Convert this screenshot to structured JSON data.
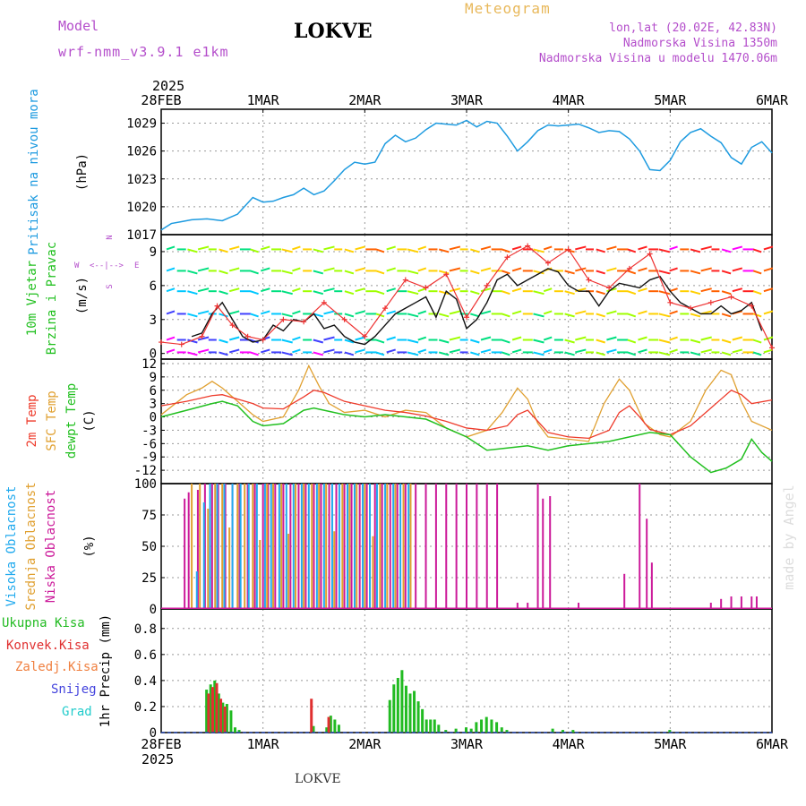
{
  "header": {
    "model_label": "Model",
    "model_name": "wrf-nmm_v3.9.1 e1km",
    "station": "LOKVE",
    "title": "Meteogram",
    "lonlat": "lon,lat (20.02E, 42.83N)",
    "altitude": "Nadmorska Visina 1350m",
    "model_altitude": "Nadmorska Visina u modelu 1470.06m",
    "footer_station": "LOKVE",
    "watermark": "made by Angel"
  },
  "time_axis": {
    "year": "2025",
    "ticks": [
      "28FEB",
      "1MAR",
      "2MAR",
      "3MAR",
      "4MAR",
      "5MAR",
      "6MAR"
    ]
  },
  "colors": {
    "pressure": "#1e9be0",
    "temp2m": "#ee3a2a",
    "sfc": "#e0a030",
    "dew": "#22c020",
    "wind_speed": "#111111",
    "gust": "#ee3333",
    "high_cloud": "#22aaee",
    "mid_cloud": "#e0a030",
    "low_cloud": "#cc1a9a",
    "total_precip": "#22bb22",
    "conv_precip": "#e03030",
    "snow": "#4444dd",
    "grad": "#22cccc",
    "purple_text": "#b44ecb",
    "orange_text": "#e8b85a"
  },
  "chart_data": [
    {
      "type": "line",
      "panel": "pressure",
      "ylabel": "Pritisak na nivou mora",
      "unit": "(hPa)",
      "ylim": [
        1017,
        1030.5
      ],
      "yticks": [
        1017,
        1020,
        1023,
        1026,
        1029
      ],
      "grid": true,
      "series": [
        {
          "x": [
            0,
            0.1,
            0.2,
            0.3,
            0.45,
            0.6,
            0.75,
            0.9,
            1.0,
            1.1,
            1.2,
            1.3,
            1.4,
            1.5,
            1.6,
            1.7,
            1.8,
            1.9,
            2.0,
            2.1,
            2.2,
            2.3,
            2.4,
            2.5,
            2.6,
            2.7,
            2.8,
            2.9,
            3.0,
            3.1,
            3.2,
            3.3,
            3.4,
            3.5,
            3.6,
            3.7,
            3.8,
            3.9,
            4.0,
            4.1,
            4.2,
            4.3,
            4.4,
            4.5,
            4.6,
            4.7,
            4.8,
            4.9,
            5.0,
            5.1,
            5.2,
            5.3,
            5.4,
            5.5,
            5.6,
            5.7,
            5.8,
            5.9,
            6.0
          ],
          "values": [
            1017.5,
            1018.2,
            1018.4,
            1018.6,
            1018.7,
            1018.5,
            1019.2,
            1021.0,
            1020.5,
            1020.6,
            1021.0,
            1021.3,
            1022.0,
            1021.3,
            1021.7,
            1022.8,
            1024.0,
            1024.8,
            1024.6,
            1024.8,
            1026.8,
            1027.7,
            1027.0,
            1027.4,
            1028.3,
            1029.0,
            1028.9,
            1028.8,
            1029.3,
            1028.6,
            1029.2,
            1029.0,
            1027.6,
            1026.0,
            1027.0,
            1028.2,
            1028.8,
            1028.7,
            1028.8,
            1028.9,
            1028.5,
            1028.0,
            1028.2,
            1028.1,
            1027.3,
            1026.0,
            1024.0,
            1023.9,
            1025.0,
            1027.0,
            1028.0,
            1028.4,
            1027.6,
            1026.9,
            1025.3,
            1024.6,
            1026.4,
            1027.0,
            1025.8
          ]
        }
      ]
    },
    {
      "type": "line",
      "panel": "wind",
      "ylabel": "10m Vjetar Brzina i Pravac",
      "unit": "(m/s)",
      "direction_legend": [
        "W",
        "<--|-->",
        "E",
        "N",
        "S"
      ],
      "ylim": [
        -0.5,
        10.5
      ],
      "yticks": [
        0,
        3,
        6,
        9
      ],
      "grid": true,
      "series": [
        {
          "name": "speed",
          "x": [
            0.3,
            0.4,
            0.5,
            0.6,
            0.7,
            0.8,
            0.9,
            1.0,
            1.1,
            1.2,
            1.3,
            1.4,
            1.5,
            1.6,
            1.7,
            1.8,
            1.9,
            2.0,
            2.1,
            2.2,
            2.3,
            2.4,
            2.5,
            2.6,
            2.7,
            2.8,
            2.9,
            3.0,
            3.1,
            3.2,
            3.3,
            3.4,
            3.5,
            3.6,
            3.7,
            3.8,
            3.9,
            4.0,
            4.1,
            4.2,
            4.3,
            4.4,
            4.5,
            4.6,
            4.7,
            4.8,
            4.9,
            5.0,
            5.1,
            5.2,
            5.3,
            5.4,
            5.5,
            5.6,
            5.7,
            5.8,
            5.9
          ],
          "values": [
            1.5,
            1.8,
            3.5,
            4.5,
            3.0,
            1.5,
            1.0,
            1.2,
            2.5,
            2.0,
            3.0,
            2.8,
            3.5,
            2.2,
            2.5,
            1.5,
            1.0,
            0.8,
            1.5,
            2.5,
            3.5,
            4.0,
            4.5,
            5.0,
            3.2,
            5.5,
            4.8,
            2.2,
            3.0,
            4.5,
            6.5,
            7.0,
            6.0,
            6.5,
            7.0,
            7.5,
            7.2,
            6.0,
            5.5,
            5.5,
            4.2,
            5.5,
            6.2,
            6.0,
            5.8,
            6.5,
            6.8,
            5.5,
            4.5,
            4.0,
            3.5,
            3.5,
            4.2,
            3.5,
            3.8,
            4.5,
            2.0
          ]
        },
        {
          "name": "gust",
          "x": [
            0.0,
            0.2,
            0.4,
            0.55,
            0.7,
            0.85,
            1.0,
            1.2,
            1.4,
            1.6,
            1.8,
            2.0,
            2.2,
            2.4,
            2.6,
            2.8,
            3.0,
            3.2,
            3.4,
            3.6,
            3.8,
            4.0,
            4.2,
            4.4,
            4.6,
            4.8,
            5.0,
            5.2,
            5.4,
            5.6,
            5.8,
            6.0
          ],
          "values": [
            1.0,
            0.8,
            1.5,
            4.2,
            2.5,
            1.5,
            1.2,
            3.0,
            2.8,
            4.5,
            3.0,
            1.5,
            4.0,
            6.5,
            5.8,
            7.0,
            3.2,
            6.0,
            8.5,
            9.5,
            8.0,
            9.2,
            6.5,
            5.8,
            7.5,
            8.8,
            4.5,
            4.0,
            4.5,
            5.0,
            4.2,
            0.5
          ]
        }
      ]
    },
    {
      "type": "line",
      "panel": "temperature",
      "ylabel": "2m Temp / SFC Temp / dewpt Temp",
      "legend": [
        "2m Temp",
        "SFC Temp",
        "dewpt Temp"
      ],
      "unit": "(C)",
      "ylim": [
        -15,
        13
      ],
      "yticks": [
        -12,
        -9,
        -6,
        -3,
        0,
        3,
        6,
        9,
        12
      ],
      "grid": true,
      "series": [
        {
          "name": "2m Temp",
          "x": [
            0,
            0.25,
            0.5,
            0.6,
            0.75,
            0.9,
            1.0,
            1.2,
            1.4,
            1.5,
            1.6,
            1.8,
            2.0,
            2.2,
            2.4,
            2.6,
            2.8,
            3.0,
            3.2,
            3.4,
            3.5,
            3.6,
            3.7,
            3.8,
            3.9,
            4.0,
            4.2,
            4.4,
            4.5,
            4.6,
            4.7,
            4.8,
            5.0,
            5.2,
            5.4,
            5.5,
            5.6,
            5.7,
            5.8,
            6.0
          ],
          "values": [
            2.5,
            3.5,
            4.8,
            5.0,
            4.0,
            3.0,
            2.0,
            1.8,
            4.5,
            6.0,
            5.5,
            3.5,
            2.5,
            1.5,
            1.0,
            0.2,
            -1.0,
            -2.5,
            -3.0,
            -2.0,
            0.5,
            1.5,
            -1.0,
            -3.5,
            -4.0,
            -4.5,
            -4.8,
            -3.0,
            1.0,
            2.5,
            0.0,
            -2.8,
            -4.0,
            -2.0,
            2.0,
            4.0,
            6.0,
            5.0,
            3.0,
            3.8
          ]
        },
        {
          "name": "SFC Temp",
          "x": [
            0,
            0.25,
            0.4,
            0.5,
            0.6,
            0.75,
            0.9,
            1.0,
            1.2,
            1.35,
            1.45,
            1.55,
            1.65,
            1.8,
            2.0,
            2.2,
            2.4,
            2.6,
            2.8,
            3.0,
            3.2,
            3.35,
            3.5,
            3.6,
            3.7,
            3.8,
            4.0,
            4.2,
            4.35,
            4.5,
            4.6,
            4.75,
            4.9,
            5.0,
            5.2,
            5.35,
            5.5,
            5.6,
            5.7,
            5.8,
            6.0
          ],
          "values": [
            0.5,
            5.0,
            6.5,
            8.0,
            6.5,
            3.5,
            0.5,
            -1.0,
            0.0,
            6.0,
            11.5,
            7.0,
            3.0,
            1.0,
            1.5,
            0.0,
            1.5,
            1.0,
            -2.5,
            -4.5,
            -3.0,
            1.0,
            6.5,
            4.0,
            -1.5,
            -4.5,
            -5.0,
            -5.5,
            3.0,
            8.5,
            6.0,
            -1.5,
            -4.0,
            -4.5,
            -1.0,
            6.0,
            10.5,
            9.5,
            3.5,
            -1.0,
            -3.0
          ]
        },
        {
          "name": "dewpt Temp",
          "x": [
            0,
            0.25,
            0.5,
            0.6,
            0.75,
            0.9,
            1.0,
            1.2,
            1.4,
            1.5,
            1.6,
            1.8,
            2.0,
            2.2,
            2.4,
            2.6,
            2.8,
            3.0,
            3.2,
            3.4,
            3.6,
            3.8,
            4.0,
            4.2,
            4.4,
            4.6,
            4.8,
            5.0,
            5.2,
            5.4,
            5.55,
            5.7,
            5.8,
            5.9,
            6.0
          ],
          "values": [
            0.0,
            1.5,
            3.0,
            3.5,
            2.5,
            -1.0,
            -2.0,
            -1.5,
            1.5,
            2.0,
            1.5,
            0.5,
            0.0,
            0.5,
            0.0,
            -0.5,
            -2.5,
            -4.5,
            -7.5,
            -7.0,
            -6.5,
            -7.5,
            -6.5,
            -6.0,
            -5.5,
            -4.5,
            -3.5,
            -4.0,
            -9.0,
            -12.5,
            -11.5,
            -9.5,
            -5.0,
            -8.0,
            -10.0
          ]
        }
      ]
    },
    {
      "type": "bar",
      "panel": "clouds",
      "ylabel": "Visoka Oblacnost / Srednja Oblacnost / Niska Oblacnost",
      "legend": [
        "Visoka Oblacnost",
        "Srednja Oblacnost",
        "Niska Oblacnost"
      ],
      "unit": "(%)",
      "ylim": [
        0,
        100
      ],
      "yticks": [
        0,
        25,
        50,
        75,
        100
      ],
      "grid": true,
      "series": [
        {
          "name": "Niska Oblacnost",
          "x": [
            0.23,
            0.27,
            0.36,
            0.43,
            0.5,
            0.56,
            0.63,
            0.7,
            0.77,
            0.85,
            0.92,
            1.0,
            1.05,
            1.12,
            1.2,
            1.27,
            1.35,
            1.42,
            1.5,
            1.57,
            1.65,
            1.72,
            1.8,
            1.87,
            1.95,
            2.02,
            2.1,
            2.17,
            2.25,
            2.32,
            2.4,
            2.5,
            2.6,
            2.7,
            2.8,
            2.9,
            3.0,
            3.1,
            3.2,
            3.3,
            3.5,
            3.6,
            3.7,
            3.75,
            3.82,
            4.1,
            4.55,
            4.7,
            4.77,
            4.82,
            5.4,
            5.5,
            5.6,
            5.7,
            5.8,
            5.85
          ],
          "values": [
            88,
            93,
            95,
            100,
            100,
            100,
            100,
            100,
            100,
            100,
            100,
            100,
            100,
            100,
            100,
            100,
            100,
            100,
            100,
            100,
            100,
            100,
            100,
            100,
            100,
            100,
            100,
            100,
            100,
            100,
            100,
            100,
            100,
            100,
            100,
            100,
            100,
            100,
            100,
            100,
            5,
            5,
            100,
            88,
            90,
            5,
            28,
            100,
            72,
            37,
            5,
            8,
            10,
            10,
            10,
            10
          ]
        },
        {
          "name": "Srednja Oblacnost",
          "x": [
            0.3,
            0.38,
            0.46,
            0.53,
            0.6,
            0.67,
            0.75,
            0.82,
            0.9,
            0.97,
            1.04,
            1.1,
            1.18,
            1.25,
            1.32,
            1.4,
            1.48,
            1.55,
            1.62,
            1.7,
            1.78,
            1.85,
            1.92,
            2.0,
            2.08,
            2.15,
            2.22,
            2.3,
            2.38,
            2.45
          ],
          "values": [
            100,
            100,
            80,
            100,
            100,
            65,
            100,
            100,
            100,
            55,
            100,
            100,
            100,
            60,
            100,
            100,
            100,
            100,
            100,
            62,
            100,
            100,
            100,
            100,
            58,
            100,
            100,
            100,
            100,
            100
          ]
        },
        {
          "name": "Visoka Oblacnost",
          "x": [
            0.35,
            0.42,
            0.48,
            0.55,
            0.62,
            0.7,
            0.78,
            0.86,
            0.94,
            1.02,
            1.08,
            1.16,
            1.23,
            1.3,
            1.38,
            1.45,
            1.53,
            1.6,
            1.68,
            1.75,
            1.83,
            1.9,
            1.98,
            2.05,
            2.12,
            2.2,
            2.28,
            2.35,
            2.43
          ],
          "values": [
            30,
            85,
            100,
            100,
            100,
            100,
            100,
            100,
            100,
            100,
            100,
            100,
            100,
            100,
            100,
            100,
            100,
            100,
            100,
            100,
            100,
            100,
            100,
            100,
            100,
            100,
            100,
            100,
            100
          ]
        }
      ]
    },
    {
      "type": "bar",
      "panel": "precip",
      "ylabel": "1hr Precip (mm)",
      "legend": [
        "Ukupna Kisa",
        "Konvek.Kisa",
        "Zaledj.Kisa",
        "Snijeg",
        "Grad"
      ],
      "ylim": [
        0,
        0.95
      ],
      "yticks": [
        0,
        0.2,
        0.4,
        0.6,
        0.8
      ],
      "grid": true,
      "series": [
        {
          "name": "Ukupna Kisa",
          "x": [
            0.45,
            0.49,
            0.53,
            0.57,
            0.61,
            0.65,
            0.69,
            0.73,
            0.77,
            1.5,
            1.63,
            1.67,
            1.71,
            1.75,
            2.25,
            2.29,
            2.33,
            2.37,
            2.41,
            2.45,
            2.49,
            2.53,
            2.57,
            2.61,
            2.65,
            2.69,
            2.73,
            2.8,
            2.9,
            3.0,
            3.05,
            3.1,
            3.15,
            3.2,
            3.25,
            3.3,
            3.35,
            3.4,
            3.85,
            3.95,
            4.05,
            5.0
          ],
          "values": [
            0.33,
            0.37,
            0.4,
            0.3,
            0.23,
            0.22,
            0.17,
            0.04,
            0.02,
            0.05,
            0.04,
            0.13,
            0.1,
            0.06,
            0.25,
            0.37,
            0.42,
            0.48,
            0.36,
            0.3,
            0.32,
            0.24,
            0.18,
            0.1,
            0.1,
            0.1,
            0.06,
            0.02,
            0.03,
            0.04,
            0.03,
            0.08,
            0.1,
            0.12,
            0.1,
            0.08,
            0.04,
            0.02,
            0.03,
            0.02,
            0.02,
            0.02
          ]
        },
        {
          "name": "Konvek.Kisa",
          "x": [
            0.47,
            0.51,
            0.55,
            0.59,
            0.63,
            1.48,
            1.65
          ],
          "values": [
            0.3,
            0.35,
            0.38,
            0.26,
            0.2,
            0.26,
            0.12
          ]
        }
      ]
    }
  ]
}
